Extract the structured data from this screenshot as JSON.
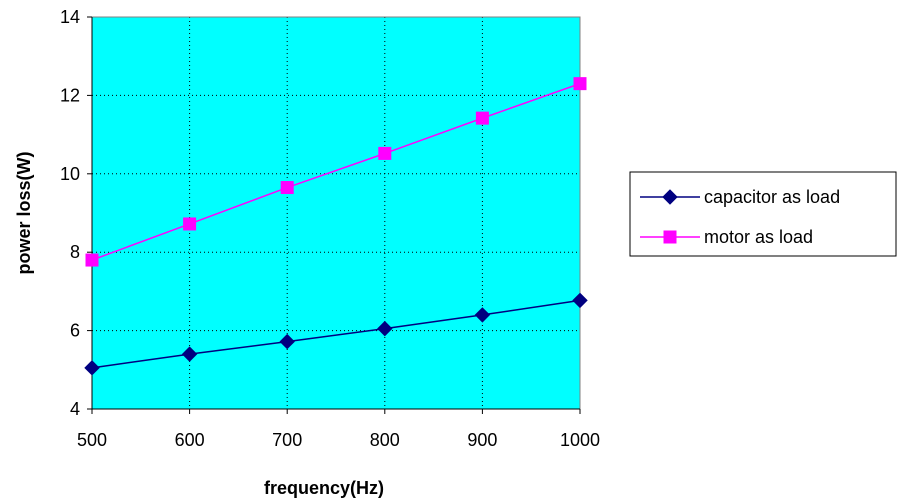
{
  "chart_data": {
    "type": "line",
    "title": "",
    "xlabel": "frequency(Hz)",
    "ylabel": "power loss(W)",
    "x": [
      500,
      600,
      700,
      800,
      900,
      1000
    ],
    "xlim": [
      500,
      1000
    ],
    "xticks": [
      "500",
      "600",
      "700",
      "800",
      "900",
      "1000"
    ],
    "ylim": [
      4,
      14
    ],
    "yticks": [
      "4",
      "6",
      "8",
      "10",
      "12",
      "14"
    ],
    "grid": true,
    "legend_position": "right",
    "plot_background": "#00FFFF",
    "series": [
      {
        "name": "capacitor as load",
        "values": [
          5.05,
          5.4,
          5.72,
          6.05,
          6.4,
          6.77
        ],
        "color": "#000080",
        "marker": "diamond"
      },
      {
        "name": "motor as load",
        "values": [
          7.8,
          8.72,
          9.65,
          10.52,
          11.42,
          12.3
        ],
        "color": "#FF00FF",
        "marker": "square"
      }
    ]
  }
}
